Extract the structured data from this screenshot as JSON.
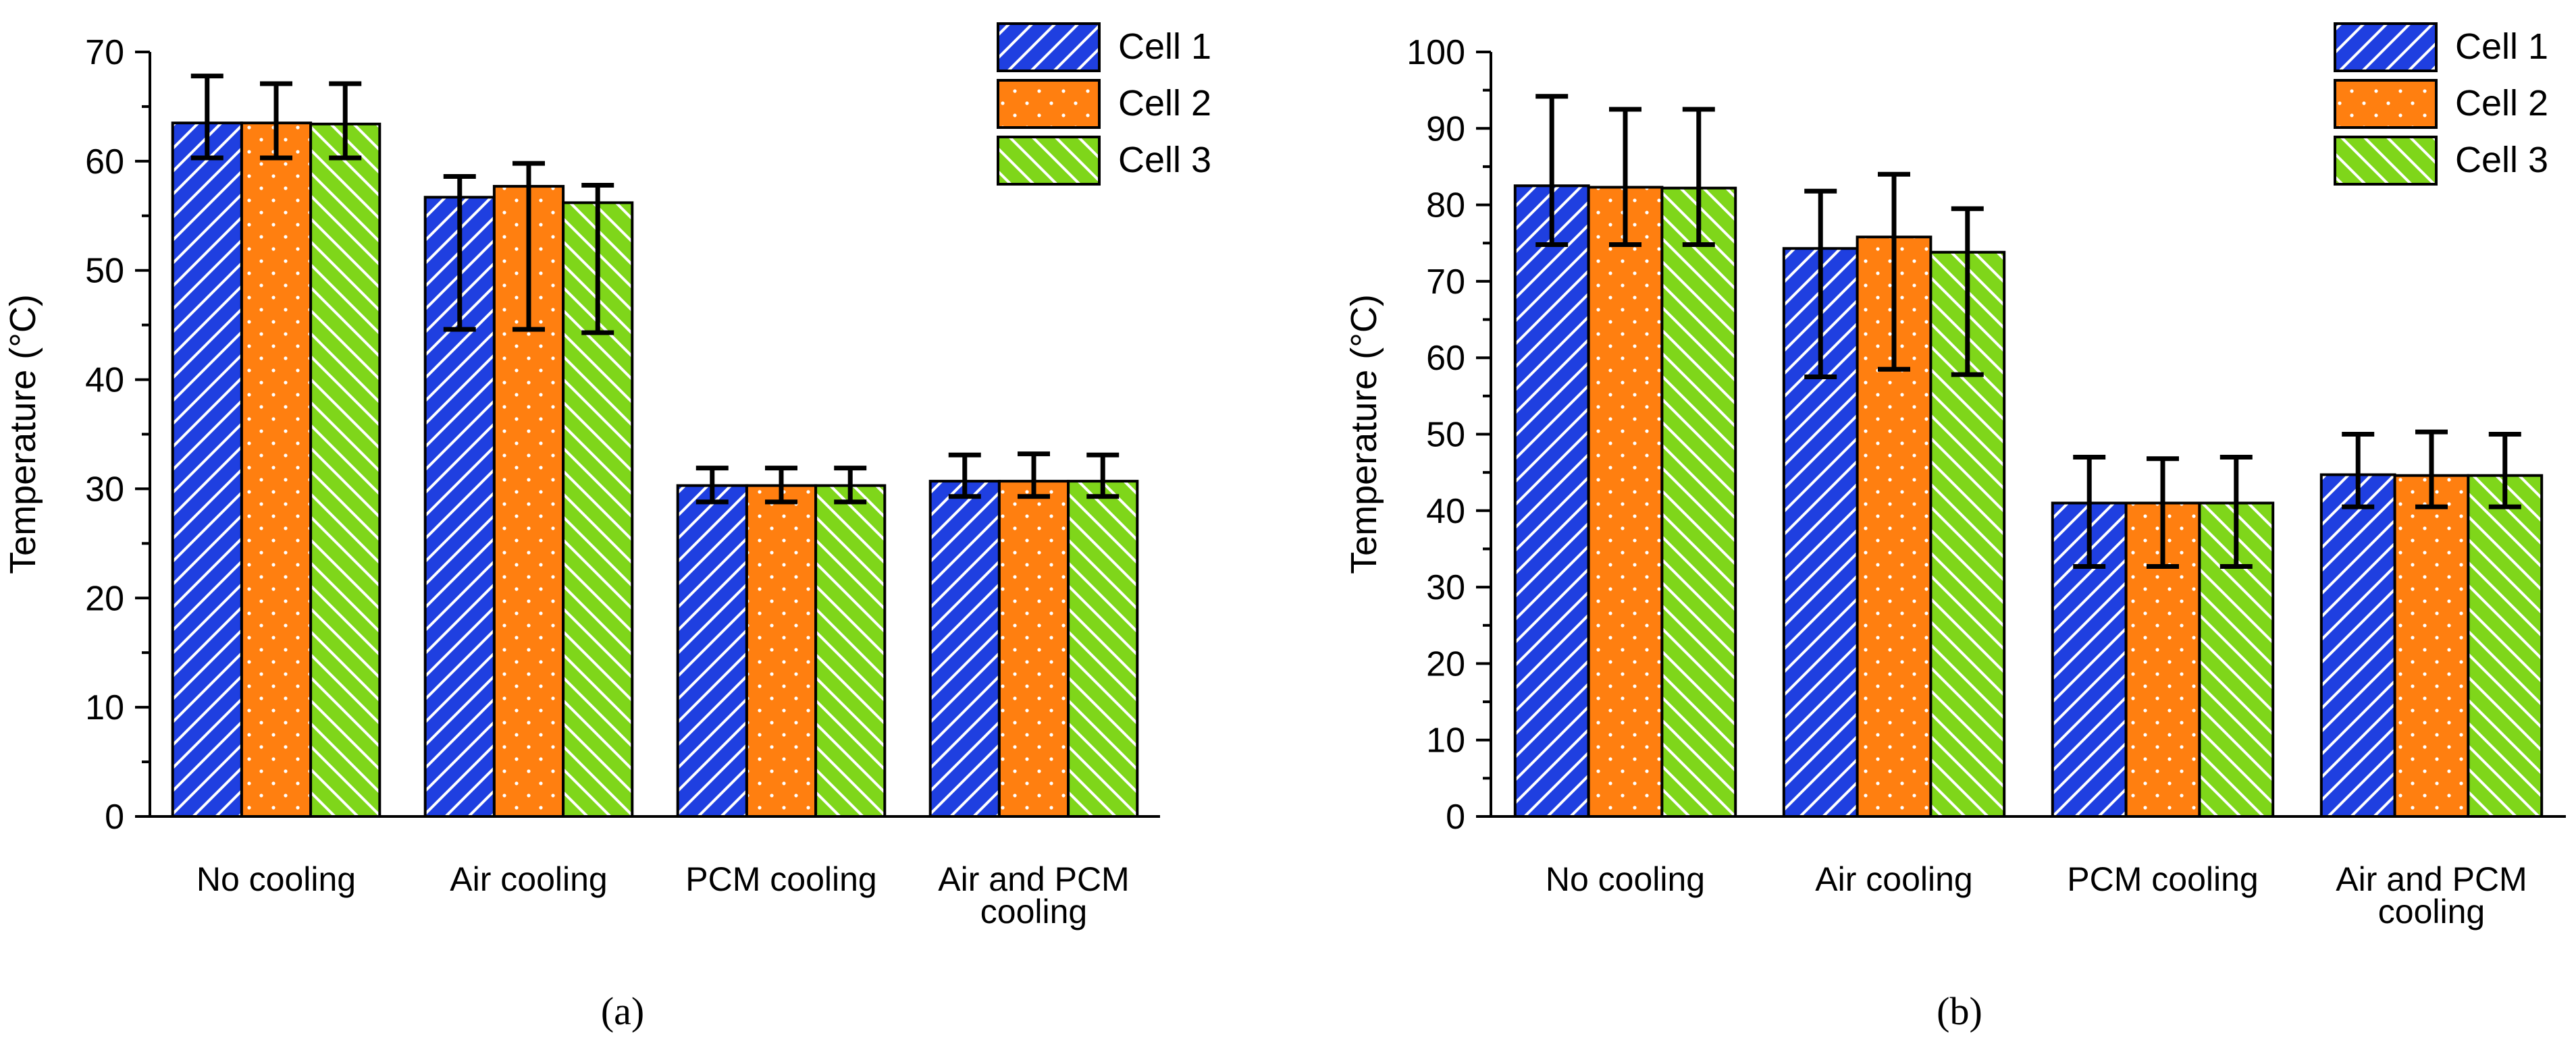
{
  "panels": [
    {
      "label": "(a)"
    },
    {
      "label": "(b)"
    }
  ],
  "colors": {
    "cell1": "#1f3fe0",
    "cell2": "#ff7f10",
    "cell3": "#7fd61a",
    "axis": "#000000"
  },
  "chart_data": [
    {
      "type": "bar",
      "title": "",
      "xlabel": "",
      "ylabel": "Temperature (°C)",
      "ylim": [
        0,
        70
      ],
      "ytick_step": 10,
      "minor_ytick_step": 5,
      "categories": [
        "No cooling",
        "Air cooling",
        "PCM cooling",
        "Air and PCM\ncooling"
      ],
      "legend_position": "top-right",
      "series": [
        {
          "name": "Cell 1",
          "pattern": "forward-hatch",
          "values": [
            63.5,
            56.7,
            30.3,
            30.7
          ],
          "err_low": [
            60.3,
            44.6,
            28.8,
            29.3
          ],
          "err_high": [
            67.8,
            58.6,
            31.9,
            33.1
          ]
        },
        {
          "name": "Cell 2",
          "pattern": "dots",
          "values": [
            63.5,
            57.7,
            30.3,
            30.7
          ],
          "err_low": [
            60.3,
            44.6,
            28.8,
            29.3
          ],
          "err_high": [
            67.1,
            59.8,
            31.9,
            33.2
          ]
        },
        {
          "name": "Cell 3",
          "pattern": "back-hatch",
          "values": [
            63.4,
            56.2,
            30.3,
            30.7
          ],
          "err_low": [
            60.3,
            44.3,
            28.8,
            29.3
          ],
          "err_high": [
            67.1,
            57.8,
            31.9,
            33.1
          ]
        }
      ]
    },
    {
      "type": "bar",
      "title": "",
      "xlabel": "",
      "ylabel": "Temperature (°C)",
      "ylim": [
        0,
        100
      ],
      "ytick_step": 10,
      "minor_ytick_step": 5,
      "categories": [
        "No cooling",
        "Air cooling",
        "PCM cooling",
        "Air and PCM\ncooling"
      ],
      "legend_position": "top-right",
      "series": [
        {
          "name": "Cell 1",
          "pattern": "forward-hatch",
          "values": [
            82.5,
            74.3,
            41.0,
            44.7
          ],
          "err_low": [
            74.8,
            57.5,
            32.7,
            40.5
          ],
          "err_high": [
            94.2,
            81.8,
            47.0,
            50.0
          ]
        },
        {
          "name": "Cell 2",
          "pattern": "dots",
          "values": [
            82.3,
            75.8,
            41.0,
            44.6
          ],
          "err_low": [
            74.8,
            58.5,
            32.7,
            40.5
          ],
          "err_high": [
            92.5,
            84.0,
            46.8,
            50.3
          ]
        },
        {
          "name": "Cell 3",
          "pattern": "back-hatch",
          "values": [
            82.2,
            73.8,
            41.0,
            44.6
          ],
          "err_low": [
            74.8,
            57.8,
            32.7,
            40.5
          ],
          "err_high": [
            92.5,
            79.5,
            47.0,
            50.0
          ]
        }
      ]
    }
  ]
}
